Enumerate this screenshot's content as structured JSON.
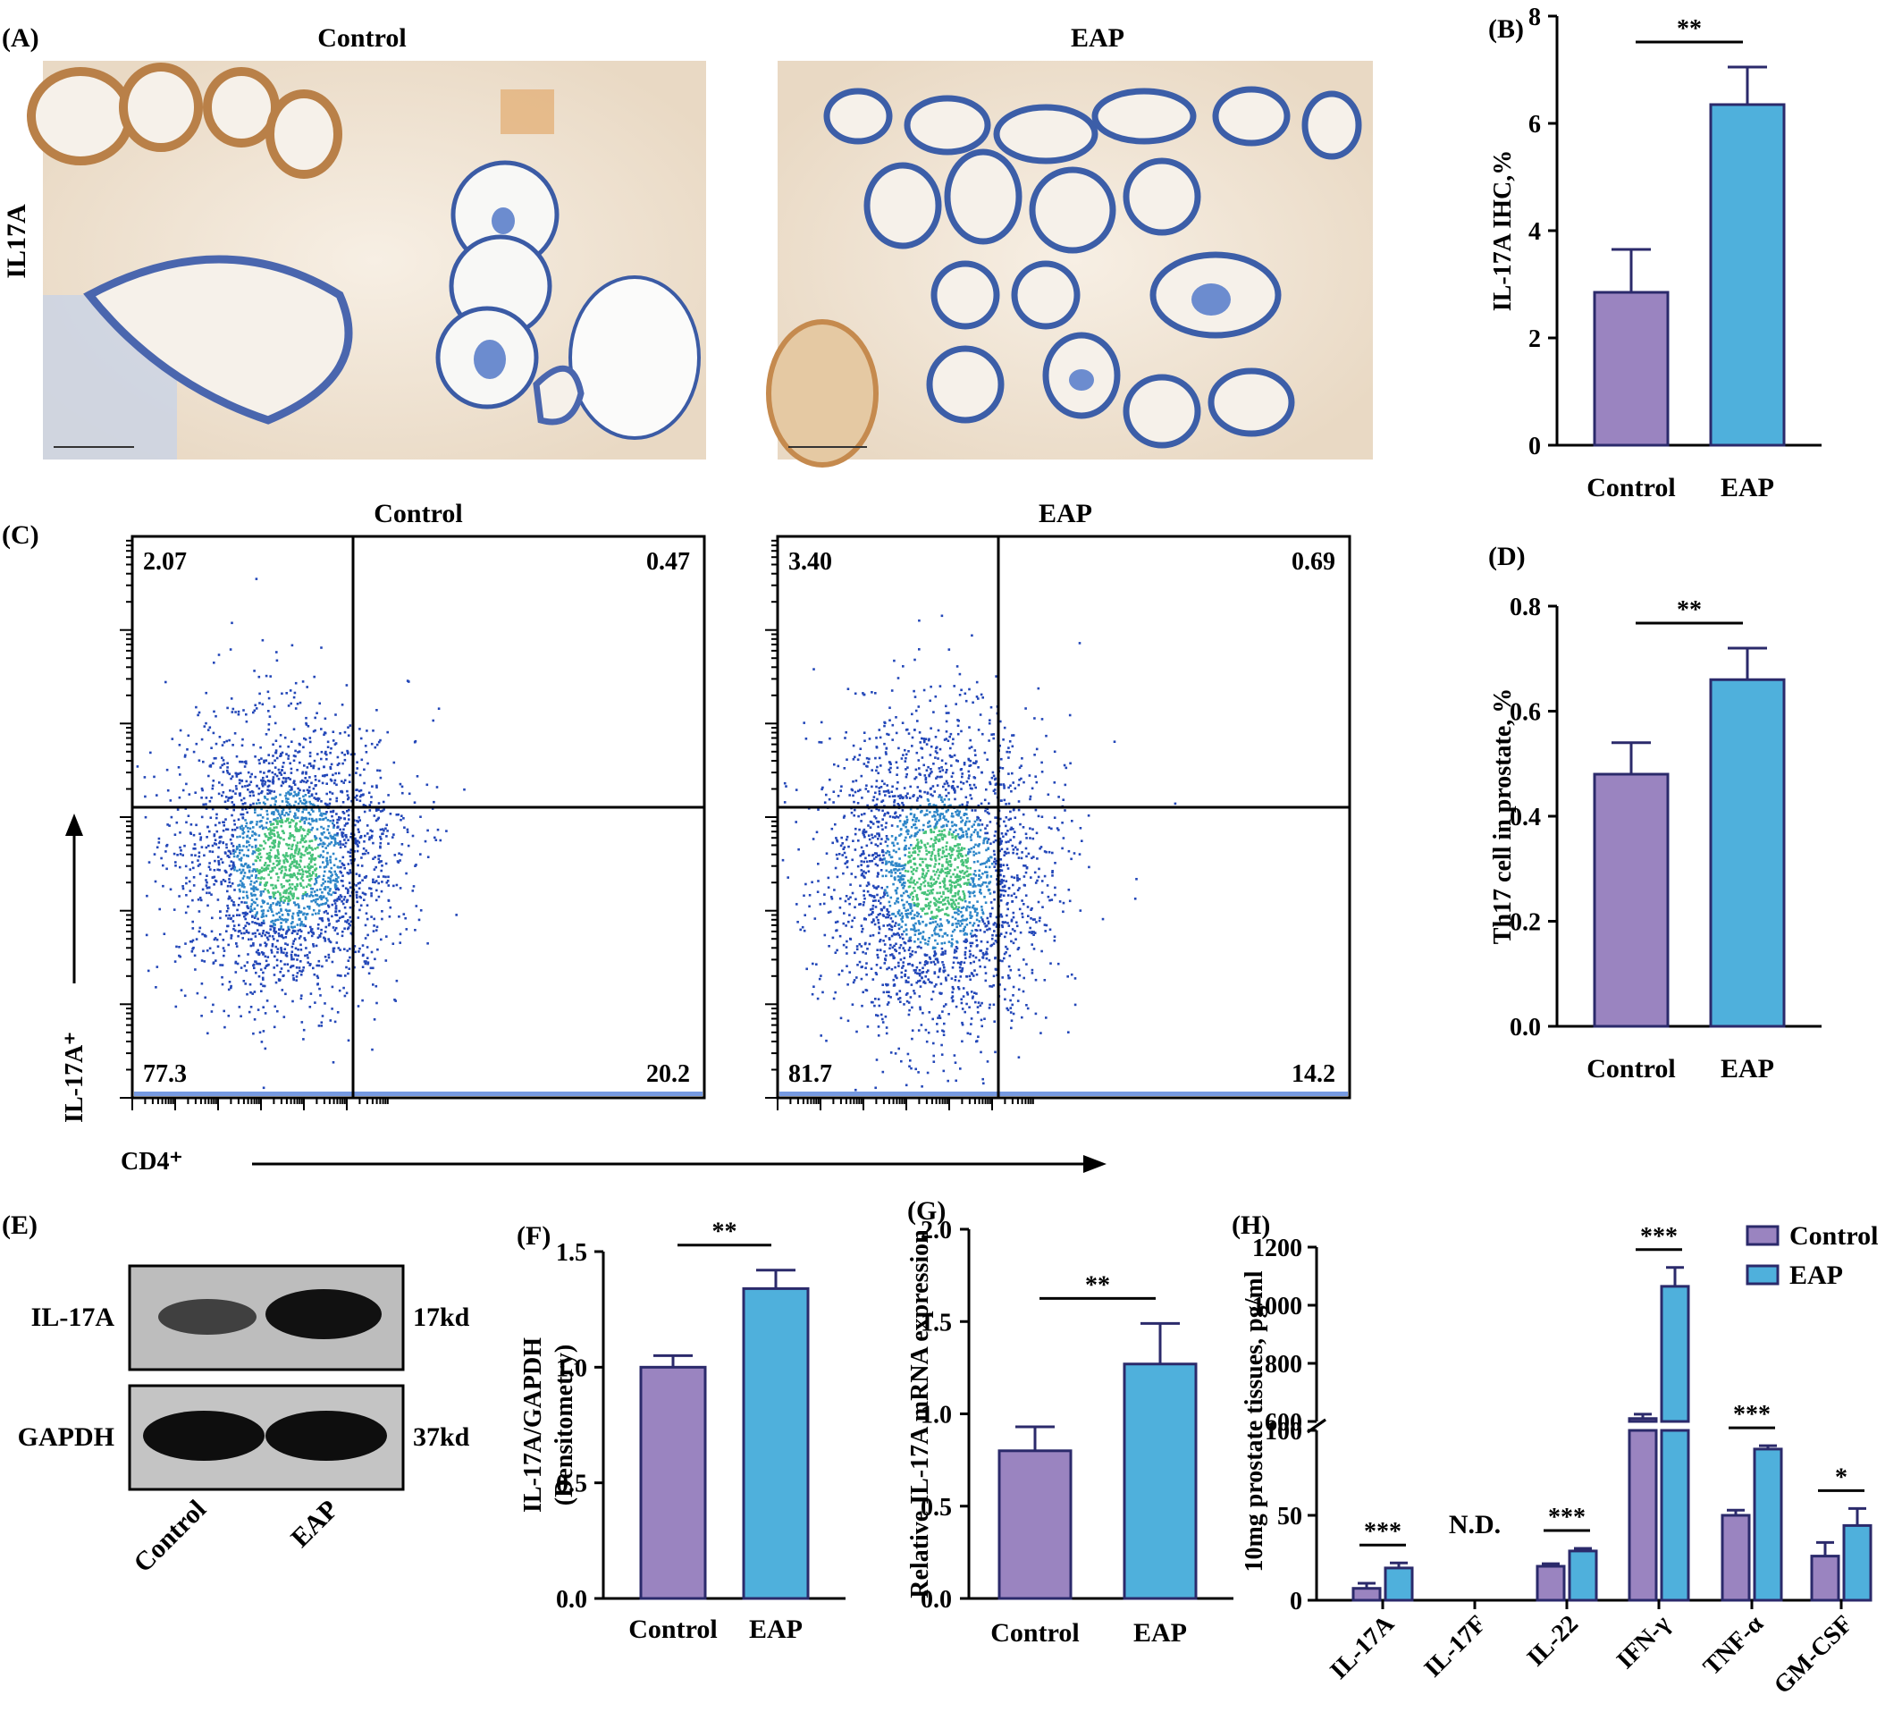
{
  "colors": {
    "control": "#9A84C0",
    "eap": "#4FB0DC",
    "edge": "#2B2A6B",
    "tissue_bg": "#F1E7DA",
    "stain": "#C58A4E",
    "hematoxylin": "#3C5EA8"
  },
  "panels": {
    "A": {
      "letter": "(A)",
      "row_label": "IL17A",
      "left_title": "Control",
      "right_title": "EAP"
    },
    "C": {
      "letter": "(C)",
      "left_title": "Control",
      "right_title": "EAP",
      "y_axis_label": "IL-17A⁺",
      "x_axis_label": "CD4⁺",
      "left_quadrants": {
        "ul": "2.07",
        "ur": "0.47",
        "ll": "77.3",
        "lr": "20.2"
      },
      "right_quadrants": {
        "ul": "3.40",
        "ur": "0.69",
        "ll": "81.7",
        "lr": "14.2"
      }
    },
    "E": {
      "letter": "(E)",
      "bands": [
        "IL-17A",
        "GAPDH"
      ],
      "sizes": [
        "17kd",
        "37kd"
      ],
      "lanes": [
        "Control",
        "EAP"
      ]
    }
  },
  "chart_data": [
    {
      "id": "B",
      "letter": "(B)",
      "type": "bar",
      "categories": [
        "Control",
        "EAP"
      ],
      "values": [
        2.85,
        6.35
      ],
      "errors": [
        0.8,
        0.7
      ],
      "ylim": [
        0,
        8
      ],
      "yticks": [
        "0",
        "2",
        "4",
        "6",
        "8"
      ],
      "ylabel": "IL-17A IHC,%",
      "sig": [
        "**"
      ]
    },
    {
      "id": "D",
      "letter": "(D)",
      "type": "bar",
      "categories": [
        "Control",
        "EAP"
      ],
      "values": [
        0.48,
        0.66
      ],
      "errors": [
        0.06,
        0.06
      ],
      "ylim": [
        0,
        0.8
      ],
      "yticks": [
        "0.0",
        "0.2",
        "0.4",
        "0.6",
        "0.8"
      ],
      "ylabel": "Th17 cell in prostate, %",
      "sig": [
        "**"
      ]
    },
    {
      "id": "F",
      "letter": "(F)",
      "type": "bar",
      "categories": [
        "Control",
        "EAP"
      ],
      "values": [
        1.0,
        1.34
      ],
      "errors": [
        0.05,
        0.08
      ],
      "ylim": [
        0,
        1.5
      ],
      "yticks": [
        "0.0",
        "0.5",
        "1.0",
        "1.5"
      ],
      "ylabel": "IL-17A/GAPDH",
      "ylabel2": "(Densitometry)",
      "sig": [
        "**"
      ]
    },
    {
      "id": "G",
      "letter": "(G)",
      "type": "bar",
      "categories": [
        "Control",
        "EAP"
      ],
      "values": [
        0.8,
        1.27
      ],
      "errors": [
        0.13,
        0.22
      ],
      "ylim": [
        0,
        2.0
      ],
      "yticks": [
        "0.0",
        "0.5",
        "1.0",
        "1.5",
        "2.0"
      ],
      "ylabel": "Relative IL-17A mRNA expression",
      "sig": [
        "**"
      ]
    },
    {
      "id": "H",
      "letter": "(H)",
      "type": "bar",
      "categories": [
        "IL-17A",
        "IL-17F",
        "IL-22",
        "IFN-γ",
        "TNF-α",
        "GM-CSF"
      ],
      "series": [
        {
          "name": "Control",
          "values": [
            7,
            null,
            20,
            610,
            50,
            26
          ],
          "errors": [
            3,
            null,
            1.5,
            15,
            3,
            8
          ]
        },
        {
          "name": "EAP",
          "values": [
            19,
            null,
            29,
            1065,
            89,
            44
          ],
          "errors": [
            3,
            null,
            1.5,
            65,
            2,
            10
          ]
        }
      ],
      "ylabel": "10mg prostate tissues, pg/ml",
      "yticks_lower": [
        "0",
        "50",
        "100"
      ],
      "yticks_upper": [
        "600",
        "800",
        "1000",
        "1200"
      ],
      "axis_break": [
        100,
        600
      ],
      "annotation": "N.D.",
      "sig": [
        "***",
        null,
        "***",
        "***",
        "***",
        "*"
      ],
      "legend_position": "top-right"
    }
  ]
}
